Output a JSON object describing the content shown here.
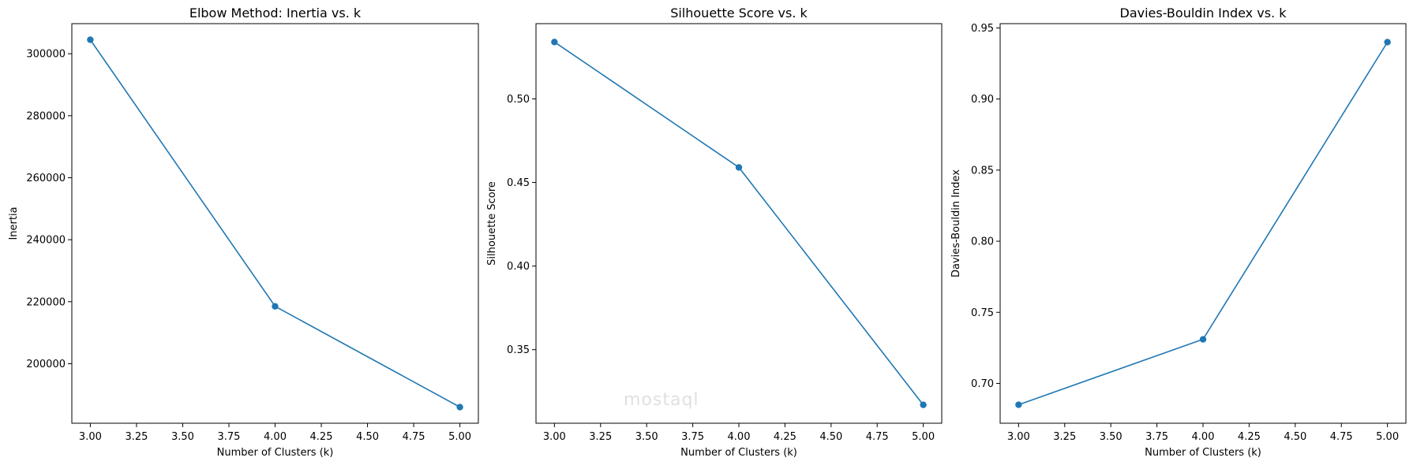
{
  "colors": {
    "series": "#1f77b4",
    "axes": "#000000",
    "background": "#ffffff"
  },
  "watermark": {
    "text": "mostaql"
  },
  "chart_data": [
    {
      "type": "line",
      "title": "Elbow Method: Inertia vs. k",
      "xlabel": "Number of Clusters (k)",
      "ylabel": "Inertia",
      "x": [
        3,
        4,
        5
      ],
      "y": [
        304500,
        218500,
        186000
      ],
      "xlim": [
        2.9,
        5.1
      ],
      "ylim": [
        180800,
        309700
      ],
      "xticks": [
        3.0,
        3.25,
        3.5,
        3.75,
        4.0,
        4.25,
        4.5,
        4.75,
        5.0
      ],
      "xtick_labels": [
        "3.00",
        "3.25",
        "3.50",
        "3.75",
        "4.00",
        "4.25",
        "4.50",
        "4.75",
        "5.00"
      ],
      "yticks": [
        200000,
        220000,
        240000,
        260000,
        280000,
        300000
      ],
      "ytick_labels": [
        "200000",
        "220000",
        "240000",
        "260000",
        "280000",
        "300000"
      ],
      "marker": "circle",
      "grid": false
    },
    {
      "type": "line",
      "title": "Silhouette Score vs. k",
      "xlabel": "Number of Clusters (k)",
      "ylabel": "Silhouette Score",
      "x": [
        3,
        4,
        5
      ],
      "y": [
        0.534,
        0.459,
        0.317
      ],
      "xlim": [
        2.9,
        5.1
      ],
      "ylim": [
        0.306,
        0.545
      ],
      "xticks": [
        3.0,
        3.25,
        3.5,
        3.75,
        4.0,
        4.25,
        4.5,
        4.75,
        5.0
      ],
      "xtick_labels": [
        "3.00",
        "3.25",
        "3.50",
        "3.75",
        "4.00",
        "4.25",
        "4.50",
        "4.75",
        "5.00"
      ],
      "yticks": [
        0.35,
        0.4,
        0.45,
        0.5
      ],
      "ytick_labels": [
        "0.35",
        "0.40",
        "0.45",
        "0.50"
      ],
      "marker": "circle",
      "grid": false
    },
    {
      "type": "line",
      "title": "Davies-Bouldin Index vs. k",
      "xlabel": "Number of Clusters (k)",
      "ylabel": "Davies-Bouldin Index",
      "x": [
        3,
        4,
        5
      ],
      "y": [
        0.685,
        0.731,
        0.94
      ],
      "xlim": [
        2.9,
        5.1
      ],
      "ylim": [
        0.672,
        0.953
      ],
      "xticks": [
        3.0,
        3.25,
        3.5,
        3.75,
        4.0,
        4.25,
        4.5,
        4.75,
        5.0
      ],
      "xtick_labels": [
        "3.00",
        "3.25",
        "3.50",
        "3.75",
        "4.00",
        "4.25",
        "4.50",
        "4.75",
        "5.00"
      ],
      "yticks": [
        0.7,
        0.75,
        0.8,
        0.85,
        0.9,
        0.95
      ],
      "ytick_labels": [
        "0.70",
        "0.75",
        "0.80",
        "0.85",
        "0.90",
        "0.95"
      ],
      "marker": "circle",
      "grid": false
    }
  ]
}
